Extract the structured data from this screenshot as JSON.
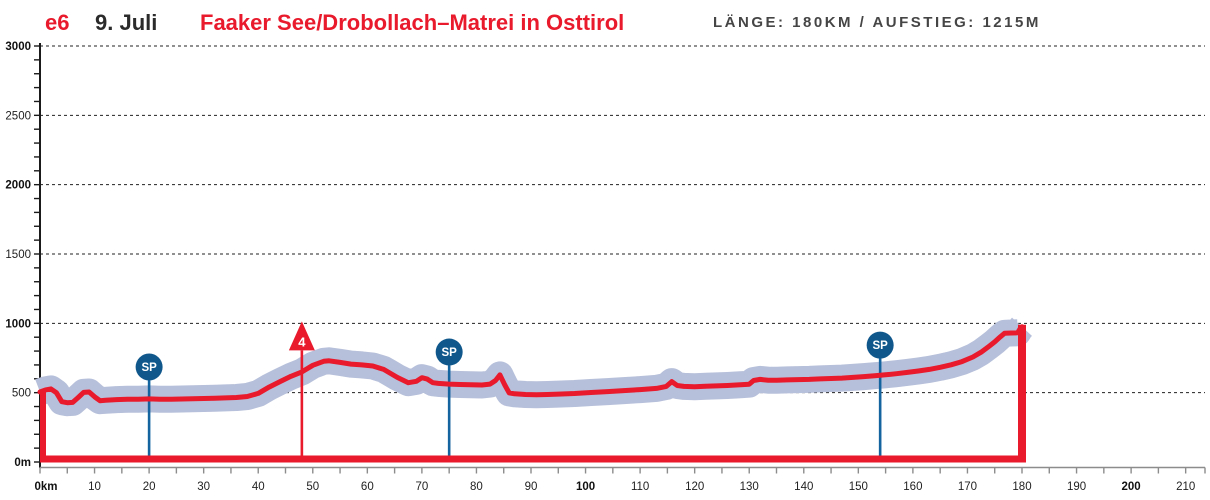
{
  "header": {
    "stage_code": "e6",
    "date": "9. Juli",
    "title": "Faaker See/Drobollach–Matrei in Osttirol",
    "stats": "LÄNGE: 180KM / AUFSTIEG: 1215M"
  },
  "chart_data": {
    "type": "area",
    "title": "Faaker See/Drobollach–Matrei in Osttirol elevation profile",
    "x_unit": "km",
    "y_unit": "m",
    "xlim": [
      0,
      213
    ],
    "ylim": [
      0,
      3000
    ],
    "x_tick_step": 5,
    "x_label_step": 10,
    "x_label_max": 210,
    "x_first_label": "0km",
    "x_bold_labels": [
      0,
      100,
      200
    ],
    "y_tick_step": 100,
    "y_label_step": 500,
    "y_first_label": "0m",
    "y_bold_labels": [
      0,
      1000,
      2000,
      3000
    ],
    "grid_step": 500,
    "grid_on": true,
    "finish_km": 180,
    "finish_elev": 975,
    "profile": [
      [
        0,
        505
      ],
      [
        1,
        520
      ],
      [
        2,
        527
      ],
      [
        3,
        500
      ],
      [
        4,
        435
      ],
      [
        5,
        428
      ],
      [
        6,
        430
      ],
      [
        7,
        465
      ],
      [
        8,
        502
      ],
      [
        9,
        505
      ],
      [
        10,
        470
      ],
      [
        11,
        442
      ],
      [
        12,
        445
      ],
      [
        14,
        450
      ],
      [
        16,
        452
      ],
      [
        18,
        453
      ],
      [
        20,
        455
      ],
      [
        22,
        453
      ],
      [
        24,
        452
      ],
      [
        26,
        454
      ],
      [
        28,
        456
      ],
      [
        30,
        458
      ],
      [
        32,
        460
      ],
      [
        34,
        462
      ],
      [
        36,
        465
      ],
      [
        38,
        472
      ],
      [
        40,
        495
      ],
      [
        42,
        540
      ],
      [
        44,
        580
      ],
      [
        46,
        618
      ],
      [
        48,
        650
      ],
      [
        50,
        697
      ],
      [
        52,
        726
      ],
      [
        53,
        730
      ],
      [
        55,
        718
      ],
      [
        57,
        706
      ],
      [
        59,
        700
      ],
      [
        61,
        692
      ],
      [
        63,
        668
      ],
      [
        64,
        645
      ],
      [
        65.5,
        610
      ],
      [
        67.5,
        572
      ],
      [
        69,
        582
      ],
      [
        70,
        608
      ],
      [
        71,
        598
      ],
      [
        72,
        572
      ],
      [
        73,
        567
      ],
      [
        75,
        562
      ],
      [
        77,
        559
      ],
      [
        79,
        557
      ],
      [
        81,
        555
      ],
      [
        82.5,
        562
      ],
      [
        83.5,
        588
      ],
      [
        84.3,
        628
      ],
      [
        85.2,
        555
      ],
      [
        86,
        498
      ],
      [
        87,
        492
      ],
      [
        89,
        487
      ],
      [
        91,
        485
      ],
      [
        93,
        487
      ],
      [
        95,
        490
      ],
      [
        98,
        494
      ],
      [
        101,
        501
      ],
      [
        104,
        508
      ],
      [
        107,
        515
      ],
      [
        110,
        522
      ],
      [
        113,
        531
      ],
      [
        114.8,
        545
      ],
      [
        115.8,
        580
      ],
      [
        116.8,
        552
      ],
      [
        118,
        545
      ],
      [
        120,
        543
      ],
      [
        122,
        546
      ],
      [
        124,
        549
      ],
      [
        126,
        552
      ],
      [
        128,
        556
      ],
      [
        130,
        561
      ],
      [
        130.8,
        588
      ],
      [
        132,
        596
      ],
      [
        133.5,
        590
      ],
      [
        135,
        589
      ],
      [
        137,
        592
      ],
      [
        139,
        594
      ],
      [
        141,
        596
      ],
      [
        143,
        599
      ],
      [
        145,
        602
      ],
      [
        147,
        605
      ],
      [
        149,
        610
      ],
      [
        151,
        616
      ],
      [
        153,
        622
      ],
      [
        155,
        629
      ],
      [
        157,
        637
      ],
      [
        159,
        646
      ],
      [
        161,
        656
      ],
      [
        163,
        668
      ],
      [
        165,
        683
      ],
      [
        167,
        701
      ],
      [
        169,
        724
      ],
      [
        171,
        757
      ],
      [
        172.5,
        792
      ],
      [
        174,
        836
      ],
      [
        175,
        866
      ],
      [
        176,
        902
      ],
      [
        176.8,
        928
      ],
      [
        178,
        930
      ],
      [
        179.2,
        932
      ],
      [
        179.6,
        958
      ],
      [
        180,
        975
      ]
    ],
    "markers": [
      {
        "kind": "sprint",
        "label": "SP",
        "km": 20,
        "elev": 685
      },
      {
        "kind": "climb",
        "label": "4",
        "km": 48,
        "elev": 1000
      },
      {
        "kind": "sprint",
        "label": "SP",
        "km": 75,
        "elev": 793
      },
      {
        "kind": "sprint",
        "label": "SP",
        "km": 154,
        "elev": 843
      }
    ],
    "colors": {
      "line": "#e81a2c",
      "band": "#b7c0da",
      "sprint_circle": "#10588c",
      "sprint_stem": "#1464a0",
      "climb": "#e81a2c",
      "y_axis": "#1a1a1a",
      "x_axis": "#8c8c8c",
      "grid": "#222222",
      "header_red": "#e81a2c"
    }
  }
}
